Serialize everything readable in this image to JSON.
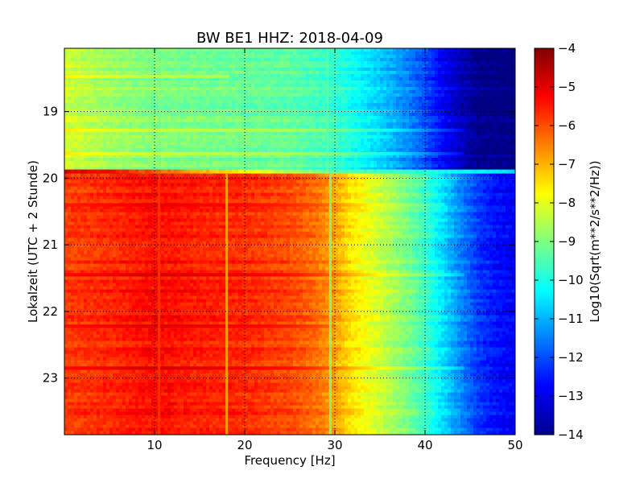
{
  "chart_data": {
    "type": "heatmap",
    "title": "BW BE1 HHZ: 2018-04-09",
    "xlabel": "Frequency [Hz]",
    "ylabel": "Lokalzeit (UTC + 2 Stunde)",
    "colorbar_label": "Log10(Sqrt(m**2/s**2/Hz))",
    "xlim": [
      0,
      50
    ],
    "ylim": [
      18.05,
      23.85
    ],
    "y_inverted": true,
    "x_ticks": [
      10,
      20,
      30,
      40,
      50
    ],
    "x_tick_labels": [
      "10",
      "20",
      "30",
      "40",
      "50"
    ],
    "y_ticks": [
      19,
      20,
      21,
      22,
      23
    ],
    "y_tick_labels": [
      "19",
      "20",
      "21",
      "22",
      "23"
    ],
    "colorbar_range": [
      -14,
      -4
    ],
    "colorbar_ticks": [
      -4,
      -5,
      -6,
      -7,
      -8,
      -9,
      -10,
      -11,
      -12,
      -13,
      -14
    ],
    "colorbar_tick_labels": [
      "−4",
      "−5",
      "−6",
      "−7",
      "−8",
      "−9",
      "−10",
      "−11",
      "−12",
      "−13",
      "−14"
    ],
    "colormap": "jet",
    "grid": true,
    "segments": [
      {
        "time_range": [
          18.05,
          19.87
        ],
        "profile_freq": [
          0,
          5,
          10,
          20,
          25,
          30,
          33,
          36,
          38,
          40,
          42,
          44,
          46,
          50
        ],
        "profile_value": [
          -8.2,
          -8.7,
          -9.0,
          -9.2,
          -9.3,
          -9.7,
          -10.3,
          -10.9,
          -11.4,
          -12.0,
          -12.8,
          -13.4,
          -13.9,
          -14.0
        ]
      },
      {
        "time_range": [
          19.87,
          19.93
        ],
        "profile_freq": [
          0,
          5,
          30,
          45,
          50
        ],
        "profile_value": [
          -5.0,
          -5.5,
          -9.5,
          -10.5,
          -10.8
        ]
      },
      {
        "time_range": [
          19.93,
          23.85
        ],
        "profile_freq": [
          0,
          5,
          10,
          15,
          20,
          25,
          28,
          30,
          32,
          35,
          38,
          40,
          42,
          44,
          46,
          48,
          50
        ],
        "profile_value": [
          -5.8,
          -5.6,
          -5.3,
          -5.5,
          -5.6,
          -5.9,
          -6.3,
          -6.8,
          -7.5,
          -8.2,
          -9.0,
          -9.6,
          -10.5,
          -11.4,
          -12.2,
          -12.6,
          -12.8
        ]
      }
    ],
    "horizontal_bands": [
      {
        "time": 19.28,
        "delta": 0.7,
        "fmax": 44
      },
      {
        "time": 19.63,
        "delta": 0.7,
        "fmax": 44
      },
      {
        "time": 18.47,
        "delta": 0.6,
        "fmax": 18
      },
      {
        "time": 20.4,
        "delta": 0.3,
        "fmax": 42
      },
      {
        "time": 21.45,
        "delta": 0.5,
        "fmax": 44
      },
      {
        "time": 22.22,
        "delta": 0.4,
        "fmax": 30
      },
      {
        "time": 22.85,
        "delta": 0.5,
        "fmax": 44
      }
    ],
    "vertical_lines": [
      {
        "freq": 10.5,
        "delta": 0.6,
        "time_range": [
          19.93,
          23.85
        ]
      },
      {
        "freq": 18.0,
        "delta": 0.6,
        "time_range": [
          19.93,
          23.85
        ]
      },
      {
        "freq": 29.5,
        "delta": 0.4,
        "time_range": [
          19.93,
          23.85
        ]
      },
      {
        "freq": 29.2,
        "delta": 0.3,
        "time_range": [
          18.05,
          19.87
        ]
      }
    ]
  }
}
